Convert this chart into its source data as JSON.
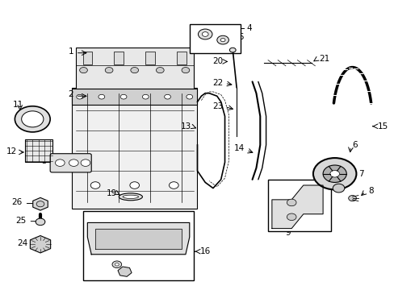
{
  "title": "",
  "background_color": "#ffffff",
  "fig_width": 4.89,
  "fig_height": 3.6,
  "dpi": 100,
  "line_color": "#000000",
  "line_width": 0.8,
  "label_fontsize": 7.5
}
